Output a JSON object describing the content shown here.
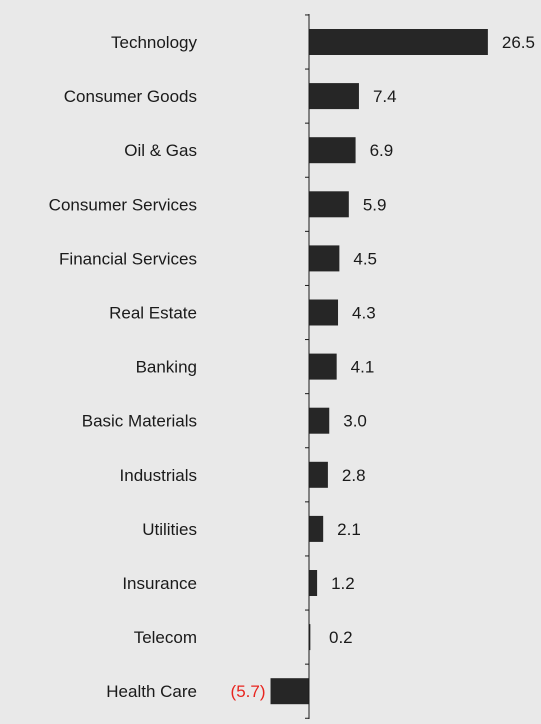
{
  "chart_data": {
    "type": "bar",
    "orientation": "horizontal",
    "title": "",
    "xlabel": "",
    "ylabel": "",
    "categories": [
      "Technology",
      "Consumer Goods",
      "Oil & Gas",
      "Consumer Services",
      "Financial Services",
      "Real Estate",
      "Banking",
      "Basic Materials",
      "Industrials",
      "Utilities",
      "Insurance",
      "Telecom",
      "Health Care"
    ],
    "values": [
      26.5,
      7.4,
      6.9,
      5.9,
      4.5,
      4.3,
      4.1,
      3.0,
      2.8,
      2.1,
      1.2,
      0.2,
      -5.7
    ],
    "value_labels": [
      "26.5",
      "7.4",
      "6.9",
      "5.9",
      "4.5",
      "4.3",
      "4.1",
      "3.0",
      "2.8",
      "2.1",
      "1.2",
      "0.2",
      "(5.7)"
    ],
    "xlim": [
      -5.7,
      26.5
    ],
    "grid": false,
    "legend": "none",
    "colors": {
      "bar": "#262626",
      "positive_label": "#1a1a1a",
      "negative_label": "#e8251f",
      "axis": "#1a1a1a",
      "background": "#e9e9e9"
    }
  }
}
